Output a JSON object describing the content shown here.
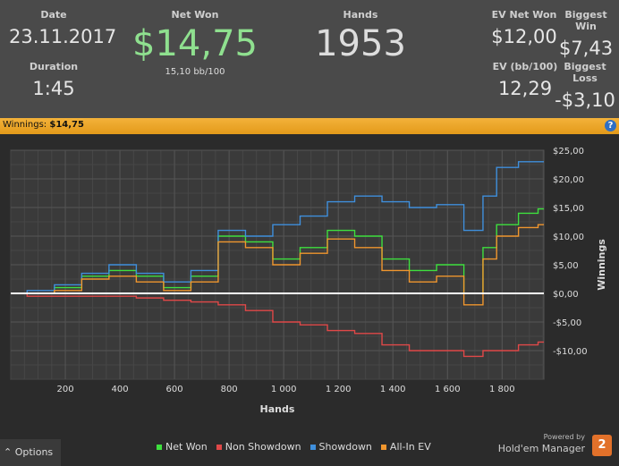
{
  "header": {
    "date_label": "Date",
    "date_value": "23.11.2017",
    "duration_label": "Duration",
    "duration_value": "1:45",
    "net_won_label": "Net Won",
    "net_won_value": "$14,75",
    "net_won_bb": "15,10 bb/100",
    "hands_label": "Hands",
    "hands_value": "1953",
    "ev_net_won_label": "EV Net Won",
    "ev_net_won_value": "$12,00",
    "biggest_win_label": "Biggest Win",
    "biggest_win_value": "$7,43",
    "ev_bb_label": "EV (bb/100)",
    "ev_bb_value": "12,29",
    "biggest_loss_label": "Biggest Loss",
    "biggest_loss_value": "-$3,10"
  },
  "winnings_bar": {
    "label": "Winnings:",
    "value": "$14,75",
    "help_icon": "?"
  },
  "footer": {
    "options_icon": "chevron-up-icon",
    "options_label": "Options",
    "powered_by": "Powered by",
    "brand": "Hold'em Manager",
    "brand_logo": "2"
  },
  "colors": {
    "net_won": "#3ee03e",
    "non_showdown": "#e04848",
    "showdown": "#3f8fdc",
    "all_in_ev": "#f0962e",
    "zero_line": "#ffffff"
  },
  "chart_data": {
    "type": "line",
    "xlabel": "Hands",
    "ylabel": "Winnings",
    "xlim": [
      0,
      1953
    ],
    "ylim": [
      -15,
      25
    ],
    "x_ticks": [
      200,
      400,
      600,
      800,
      1000,
      1200,
      1400,
      1600,
      1800
    ],
    "x_tick_labels": [
      "200",
      "400",
      "600",
      "800",
      "1 000",
      "1 200",
      "1 400",
      "1 600",
      "1 800"
    ],
    "y_ticks": [
      -10,
      -5,
      0,
      5,
      10,
      15,
      20,
      25
    ],
    "y_tick_labels": [
      "-$10,00",
      "-$5,00",
      "$0,00",
      "$5,00",
      "$10,00",
      "$15,00",
      "$20,00",
      "$25,00"
    ],
    "grid": true,
    "legend": "bottom",
    "x": [
      0,
      100,
      200,
      300,
      400,
      500,
      600,
      700,
      800,
      900,
      1000,
      1100,
      1200,
      1300,
      1400,
      1500,
      1600,
      1700,
      1750,
      1800,
      1900,
      1953
    ],
    "series": [
      {
        "name": "Net Won",
        "color": "#3ee03e",
        "values": [
          0,
          0,
          1,
          3,
          4,
          3,
          1,
          3,
          10,
          9,
          6,
          8,
          11,
          10,
          6,
          4,
          5,
          0,
          8,
          12,
          14,
          14.75
        ]
      },
      {
        "name": "Non Showdown",
        "color": "#e04848",
        "values": [
          0,
          -0.5,
          -0.5,
          -0.5,
          -0.5,
          -0.8,
          -1.2,
          -1.5,
          -2,
          -3,
          -5,
          -5.5,
          -6.5,
          -7,
          -9,
          -10,
          -10,
          -11,
          -10,
          -10,
          -9,
          -8.5
        ]
      },
      {
        "name": "Showdown",
        "color": "#3f8fdc",
        "values": [
          0,
          0.5,
          1.5,
          3.5,
          5,
          3.5,
          2,
          4,
          11,
          10,
          12,
          13.5,
          16,
          17,
          16,
          15,
          15.5,
          11,
          17,
          22,
          23,
          23
        ]
      },
      {
        "name": "All-In EV",
        "color": "#f0962e",
        "values": [
          0,
          0,
          0.5,
          2.5,
          3,
          2,
          0.5,
          2,
          9,
          8,
          5,
          7,
          9.5,
          8,
          4,
          2,
          3,
          -2,
          6,
          10,
          11.5,
          12
        ]
      }
    ]
  }
}
